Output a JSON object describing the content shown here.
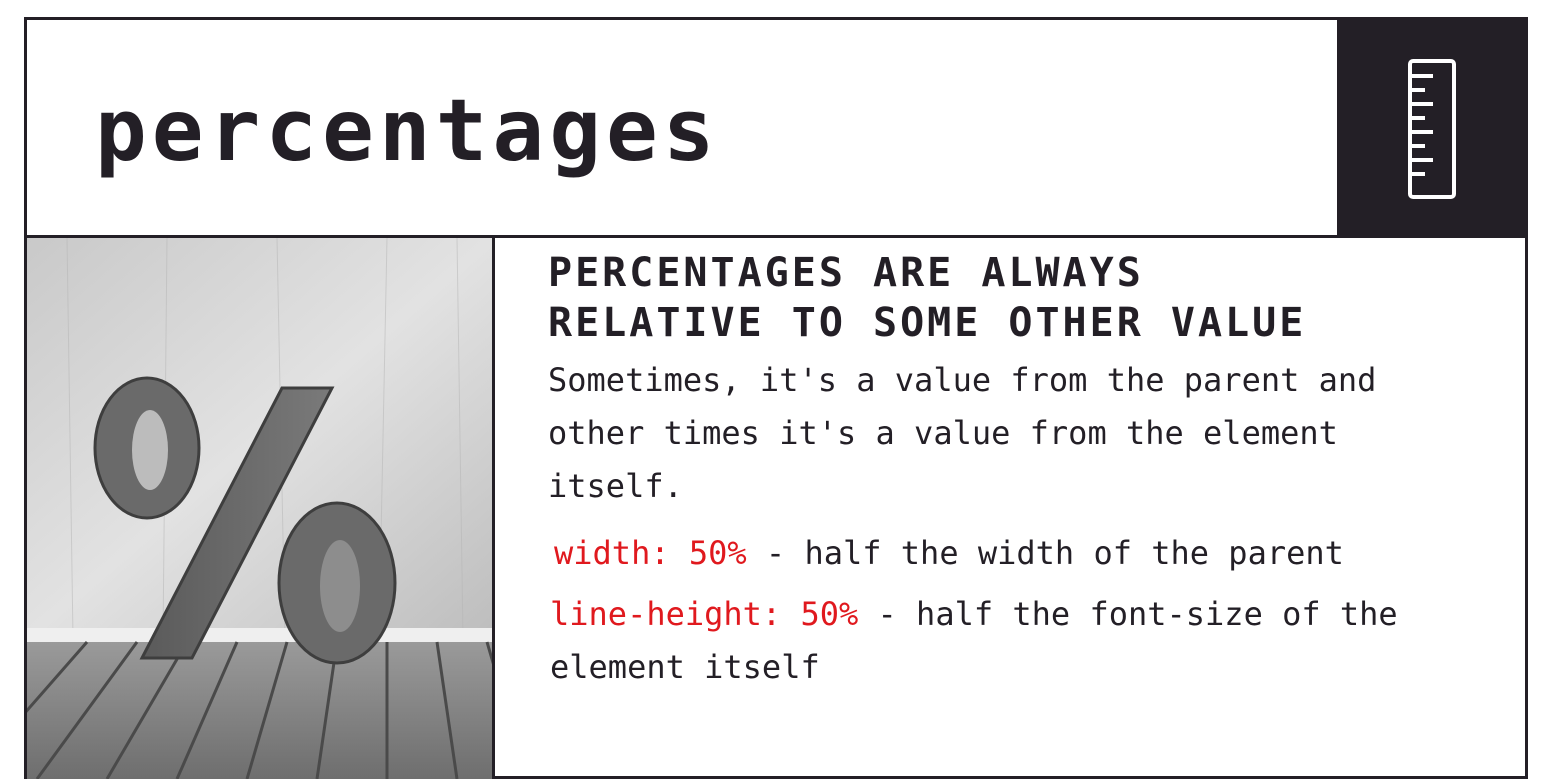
{
  "slide": {
    "title": "percentages",
    "icon": "ruler-icon",
    "image": "percent-sign-3d-image",
    "heading_line1": "PERCENTAGES ARE ALWAYS",
    "heading_line2": "RELATIVE TO SOME OTHER VALUE",
    "intro": "Sometimes, it's a value from the parent and other times it's a value from the element itself.",
    "examples": [
      {
        "code": "width: 50%",
        "text": " - half the width of the parent"
      },
      {
        "code": "line-height: 50%",
        "text": " - half the font-size of the element itself"
      }
    ]
  },
  "colors": {
    "dark": "#231f26",
    "accent": "#e0191e",
    "background": "#ffffff"
  }
}
